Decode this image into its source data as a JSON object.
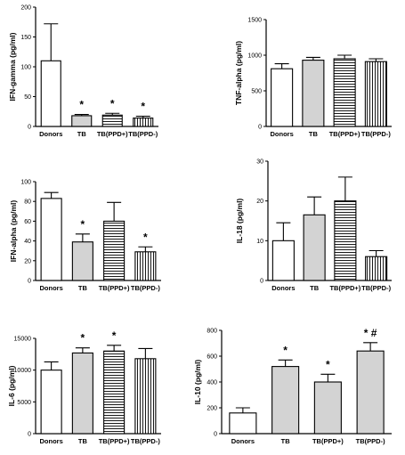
{
  "chart_data": [
    {
      "type": "bar",
      "ylabel": "IFN-gamma (pg/ml)",
      "categories": [
        "Donors",
        "TB",
        "TB(PPD+)",
        "TB(PPD-)"
      ],
      "values": [
        110,
        18,
        19,
        14
      ],
      "errors": [
        62,
        2,
        3,
        3
      ],
      "fills": [
        "white",
        "gray",
        "hlines",
        "vlines"
      ],
      "annotations": [
        "",
        "*",
        "*",
        "*"
      ],
      "ylim": [
        0,
        200
      ],
      "yticks": [
        0,
        50,
        100,
        150,
        200
      ]
    },
    {
      "type": "bar",
      "ylabel": "TNF-alpha (pg/ml)",
      "categories": [
        "Donors",
        "TB",
        "TB(PPD+)",
        "TB(PPD-)"
      ],
      "values": [
        810,
        930,
        950,
        910
      ],
      "errors": [
        70,
        40,
        50,
        40
      ],
      "fills": [
        "white",
        "gray",
        "hlines",
        "vlines"
      ],
      "annotations": [
        "",
        "",
        "",
        ""
      ],
      "ylim": [
        0,
        1500
      ],
      "yticks": [
        0,
        500,
        1000,
        1500
      ]
    },
    {
      "type": "bar",
      "ylabel": "IFN-alpha (pg/ml)",
      "categories": [
        "Donors",
        "TB",
        "TB(PPD+)",
        "TB(PPD-)"
      ],
      "values": [
        83,
        39,
        60,
        29
      ],
      "errors": [
        6,
        8,
        19,
        5
      ],
      "fills": [
        "white",
        "gray",
        "hlines",
        "vlines"
      ],
      "annotations": [
        "",
        "*",
        "",
        "*"
      ],
      "ylim": [
        0,
        100
      ],
      "yticks": [
        0,
        20,
        40,
        60,
        80,
        100
      ]
    },
    {
      "type": "bar",
      "ylabel": "IL-18 (pg/ml)",
      "categories": [
        "Donors",
        "TB",
        "TB(PPD+)",
        "TB(PPD-)"
      ],
      "values": [
        10,
        16.5,
        20,
        6
      ],
      "errors": [
        4.5,
        4.5,
        6,
        1.5
      ],
      "fills": [
        "white",
        "gray",
        "hlines",
        "vlines"
      ],
      "annotations": [
        "",
        "",
        "",
        ""
      ],
      "ylim": [
        0,
        30
      ],
      "yticks": [
        0,
        10,
        20,
        30
      ]
    },
    {
      "type": "bar",
      "ylabel": "IL-6 (pg/ml)",
      "categories": [
        "Donors",
        "TB",
        "TB(PPD+)",
        "TB(PPD-)"
      ],
      "values": [
        10000,
        12700,
        13000,
        11800
      ],
      "errors": [
        1300,
        800,
        900,
        1600
      ],
      "fills": [
        "white",
        "gray",
        "hlines",
        "vlines"
      ],
      "annotations": [
        "",
        "*",
        "*",
        ""
      ],
      "ylim": [
        0,
        15000
      ],
      "yticks": [
        0,
        5000,
        10000,
        15000
      ]
    },
    {
      "type": "bar",
      "ylabel": "IL-10 (pg/ml)",
      "categories": [
        "Donors",
        "TB",
        "TB(PPD+)",
        "TB(PPD-)"
      ],
      "values": [
        160,
        520,
        400,
        640
      ],
      "errors": [
        40,
        50,
        60,
        65
      ],
      "fills": [
        "white",
        "gray",
        "gray",
        "gray"
      ],
      "annotations": [
        "",
        "*",
        "*",
        "* #"
      ],
      "ylim": [
        0,
        800
      ],
      "yticks": [
        0,
        200,
        400,
        600,
        800
      ]
    }
  ]
}
